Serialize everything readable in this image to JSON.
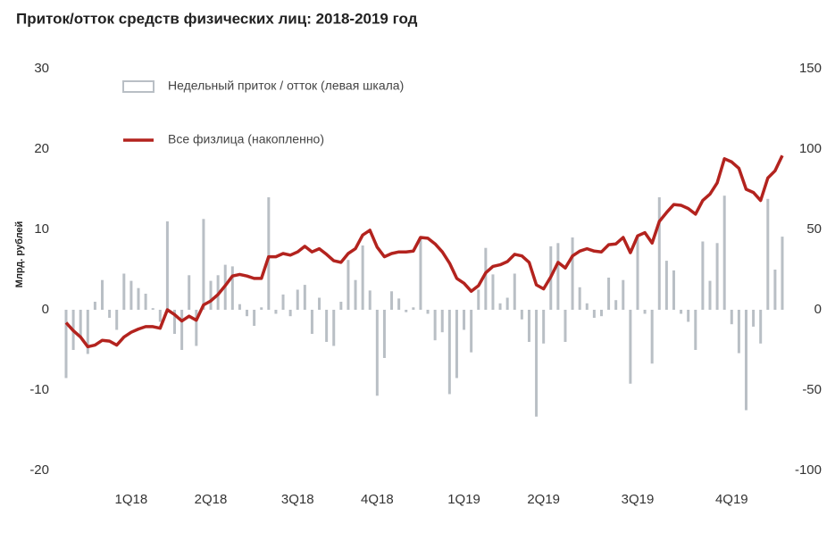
{
  "chart_data": {
    "type": "combo",
    "title": "Приток/отток средств физических лиц: 2018-2019 год",
    "y_label": "Млрд. рублей",
    "categories": [
      null,
      null,
      null,
      null,
      null,
      null,
      null,
      null,
      null,
      "1Q18",
      null,
      null,
      null,
      null,
      null,
      null,
      null,
      null,
      null,
      null,
      "2Q18",
      null,
      null,
      null,
      null,
      null,
      null,
      null,
      null,
      null,
      null,
      null,
      "3Q18",
      null,
      null,
      null,
      null,
      null,
      null,
      null,
      null,
      null,
      null,
      "4Q18",
      null,
      null,
      null,
      null,
      null,
      null,
      null,
      null,
      null,
      null,
      null,
      "1Q19",
      null,
      null,
      null,
      null,
      null,
      null,
      null,
      null,
      null,
      null,
      "2Q19",
      null,
      null,
      null,
      null,
      null,
      null,
      null,
      null,
      null,
      null,
      null,
      null,
      "3Q19",
      null,
      null,
      null,
      null,
      null,
      null,
      null,
      null,
      null,
      null,
      null,
      null,
      "4Q19",
      null,
      null,
      null,
      null,
      null,
      null,
      null
    ],
    "series": [
      {
        "name": "Недельный приток / отток (левая шкала)",
        "type": "bar",
        "color": "#b9bfc5",
        "values": [
          -8.5,
          -5,
          -3.5,
          -5.5,
          1,
          3.7,
          -1,
          -2.5,
          4.5,
          3.6,
          2.7,
          2,
          0.2,
          -1.5,
          11,
          -3,
          -5,
          4.3,
          -4.5,
          11.3,
          3.6,
          4.3,
          5.6,
          5.4,
          0.7,
          -0.8,
          -2,
          0.3,
          14,
          -0.5,
          1.9,
          -0.8,
          2.5,
          3.1,
          -3,
          1.5,
          -4,
          -4.5,
          1,
          6.2,
          3.7,
          8,
          2.4,
          -10.7,
          -6,
          2.3,
          1.4,
          -0.3,
          0.3,
          9,
          -0.5,
          -3.8,
          -2.8,
          -10.5,
          -8.5,
          -2.5,
          -5.3,
          2.5,
          7.7,
          4.4,
          0.8,
          1.5,
          4.5,
          -1.2,
          -4,
          -13.3,
          -4.2,
          7.9,
          8.3,
          -4,
          9,
          2.8,
          0.8,
          -1,
          -0.8,
          4,
          1.2,
          3.7,
          -9.2,
          9,
          -0.5,
          -6.7,
          14,
          6.1,
          4.9,
          -0.5,
          -1.5,
          -5,
          8.5,
          3.6,
          8.3,
          14.2,
          -1.8,
          -5.4,
          -12.5,
          -2.1,
          -4.2,
          13.8,
          5,
          9.1
        ]
      },
      {
        "name": "Все физлица (накопленно)",
        "type": "line",
        "axis": "y2",
        "color": "#b3231e",
        "values": [
          -8,
          -13,
          -17,
          -23,
          -22,
          -19,
          -19.5,
          -22,
          -17,
          -14,
          -12,
          -10.5,
          -10.5,
          -11.5,
          0,
          -3,
          -7,
          -4,
          -6.5,
          3,
          5.5,
          9.5,
          15,
          21,
          22,
          21,
          19.5,
          19.5,
          33,
          33,
          35,
          34,
          36,
          39.5,
          36,
          38,
          34.5,
          30.5,
          29.5,
          35,
          38,
          46.5,
          49.5,
          39,
          33,
          35,
          36,
          36,
          36.5,
          45,
          44.5,
          41,
          36,
          29,
          19.5,
          16.5,
          11.5,
          15,
          23,
          27,
          28,
          30,
          34.5,
          33.5,
          29.5,
          15.5,
          13,
          20.5,
          29.5,
          26,
          33.5,
          36.5,
          38,
          36.5,
          36,
          40.5,
          41,
          45,
          35.5,
          46,
          48,
          41.5,
          55,
          60.5,
          65.5,
          65,
          63,
          59.5,
          68,
          72,
          79,
          94,
          92,
          88,
          75,
          73,
          68,
          82,
          86.5,
          96
        ]
      }
    ],
    "ylim": [
      -20,
      30
    ],
    "yticks": [
      -20,
      -10,
      0,
      10,
      20,
      30
    ],
    "y2lim": [
      -100,
      150
    ],
    "y2ticks": [
      -100,
      -50,
      0,
      50,
      100,
      150
    ],
    "grid": false,
    "legend": "top-left"
  }
}
